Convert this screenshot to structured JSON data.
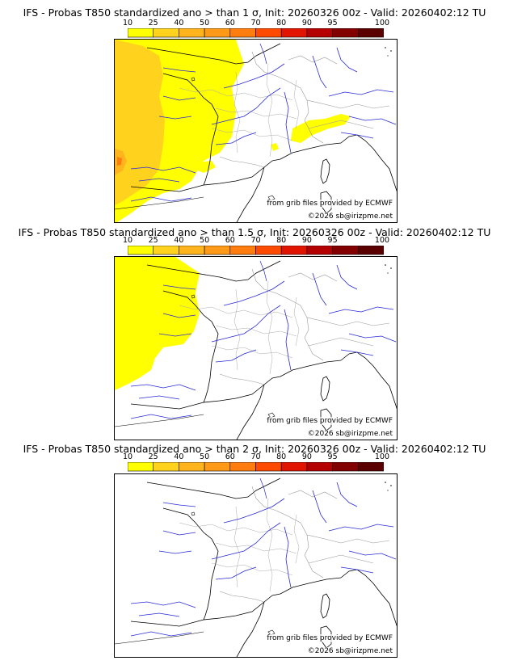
{
  "colorbar": {
    "ticks": [
      "10",
      "25",
      "40",
      "50",
      "60",
      "70",
      "80",
      "90",
      "95",
      "100"
    ],
    "colors": [
      "#ffff00",
      "#ffd21e",
      "#ffb41e",
      "#ff9a19",
      "#ff7d0f",
      "#ff4b00",
      "#e11400",
      "#b40000",
      "#820000",
      "#5a0000"
    ]
  },
  "panels": [
    {
      "title": "IFS - Probas T850  standardized ano > than 1 σ, Init: 20260326 00z - Valid: 20260402:12 TU",
      "credit_source": "from grib files provided by ECMWF",
      "credit_copyright": "©2026 sb@irizpme.net"
    },
    {
      "title": "IFS - Probas T850  standardized ano > than 1.5 σ, Init: 20260326 00z - Valid: 20260402:12 TU",
      "credit_source": "from grib files provided by ECMWF",
      "credit_copyright": "©2026 sb@irizpme.net"
    },
    {
      "title": "IFS - Probas T850  standardized ano > than 2 σ, Init: 20260326 00z - Valid: 20260402:12 TU",
      "credit_source": "from grib files provided by ECMWF",
      "credit_copyright": "©2026 sb@irizpme.net"
    }
  ]
}
